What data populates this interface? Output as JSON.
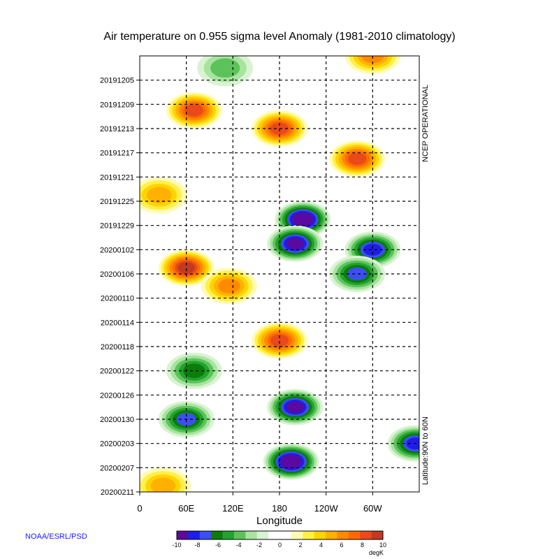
{
  "title": "Air temperature on 0.955 sigma level Anomaly  (1981-2010 climatology)",
  "credit": "NOAA/ESRL/PSD",
  "right_label_top": "NCEP OPERATIONAL",
  "right_label_bottom": "Latitude:90N to 60N",
  "colorbar": {
    "unit": "degK",
    "ticks": [
      "-10",
      "-8",
      "-6",
      "-4",
      "-2",
      "0",
      "2",
      "4",
      "6",
      "8",
      "10"
    ],
    "colors": [
      "#5a0aa0",
      "#1e1ee6",
      "#3c4ff0",
      "#0a7d0a",
      "#21a32e",
      "#5cc35a",
      "#a8e39f",
      "#d8f3d2",
      "#ffffff",
      "#ffffff",
      "#fffbb5",
      "#fff04a",
      "#ffd400",
      "#ffb000",
      "#ff8a00",
      "#ff6a00",
      "#e84a1a",
      "#c23a20"
    ]
  },
  "chart_data": {
    "type": "heatmap",
    "title": "Air temperature on 0.955 sigma level Anomaly  (1981-2010 climatology)",
    "xlabel": "Longitude",
    "ylabel": "",
    "x_ticks": [
      "0",
      "60E",
      "120E",
      "180",
      "120W",
      "60W"
    ],
    "x_tick_values": [
      0,
      60,
      120,
      180,
      240,
      300
    ],
    "xlim": [
      0,
      360
    ],
    "y_ticks": [
      "20191205",
      "20191209",
      "20191213",
      "20191217",
      "20191221",
      "20191225",
      "20191229",
      "20200102",
      "20200106",
      "20200110",
      "20200114",
      "20200118",
      "20200122",
      "20200126",
      "20200130",
      "20200203",
      "20200207",
      "20200211"
    ],
    "ylim": [
      "20191201",
      "20200211"
    ],
    "y_reversed": true,
    "colorbar_unit": "degK",
    "color_range": [
      -10,
      10
    ],
    "grid": true,
    "latitude_band": "90N to 60N",
    "source": "NCEP OPERATIONAL",
    "anomaly_features": [
      {
        "lon": 70,
        "date": "20191210",
        "value": 7
      },
      {
        "lon": 25,
        "date": "20191224",
        "value": 4
      },
      {
        "lon": 180,
        "date": "20191213",
        "value": 7
      },
      {
        "lon": 280,
        "date": "20191218",
        "value": 7
      },
      {
        "lon": 300,
        "date": "20191201",
        "value": 5
      },
      {
        "lon": 60,
        "date": "20200105",
        "value": 8
      },
      {
        "lon": 115,
        "date": "20200108",
        "value": 5
      },
      {
        "lon": 180,
        "date": "20200117",
        "value": 7
      },
      {
        "lon": 30,
        "date": "20200210",
        "value": 4
      },
      {
        "lon": 210,
        "date": "20191228",
        "value": -9
      },
      {
        "lon": 200,
        "date": "20200101",
        "value": -8
      },
      {
        "lon": 300,
        "date": "20200102",
        "value": -7
      },
      {
        "lon": 280,
        "date": "20200106",
        "value": -6
      },
      {
        "lon": 200,
        "date": "20200128",
        "value": -8
      },
      {
        "lon": 195,
        "date": "20200206",
        "value": -9
      },
      {
        "lon": 70,
        "date": "20200122",
        "value": -5
      },
      {
        "lon": 60,
        "date": "20200130",
        "value": -6
      },
      {
        "lon": 355,
        "date": "20200203",
        "value": -7
      },
      {
        "lon": 110,
        "date": "20191203",
        "value": -3
      }
    ]
  }
}
